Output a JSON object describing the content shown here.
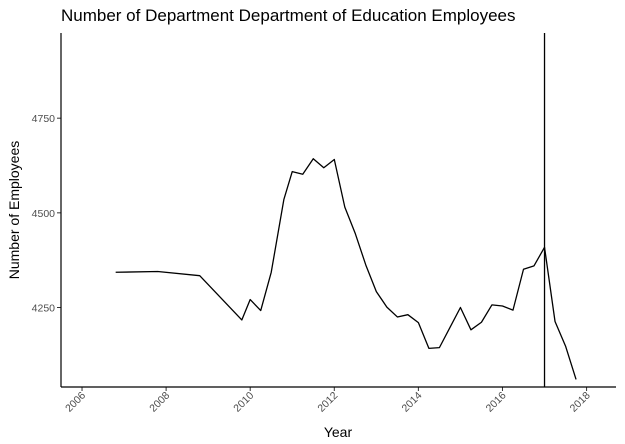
{
  "chart_data": {
    "type": "line",
    "title": "Number of Department Department of Education Employees",
    "xlabel": "Year",
    "ylabel": "Number of Employees",
    "x_ticks": [
      2006,
      2008,
      2010,
      2012,
      2014,
      2016,
      2018
    ],
    "y_ticks": [
      4250,
      4500,
      4750
    ],
    "xlim": [
      2005.5,
      2018.7
    ],
    "ylim": [
      4040,
      4975
    ],
    "grid": false,
    "legend": "none",
    "vertical_line_x": 2017.0,
    "series": [
      {
        "x": [
          2006.8,
          2007.8,
          2008.8,
          2009.8,
          2010.0,
          2010.25,
          2010.5,
          2010.8,
          2011.0,
          2011.25,
          2011.5,
          2011.75,
          2012.0,
          2012.25,
          2012.5,
          2012.75,
          2013.0,
          2013.25,
          2013.5,
          2013.75,
          2014.0,
          2014.25,
          2014.5,
          2014.75,
          2015.0,
          2015.25,
          2015.5,
          2015.75,
          2016.0,
          2016.25,
          2016.5,
          2016.75,
          2017.0,
          2017.25,
          2017.5,
          2017.75
        ],
        "y": [
          4343,
          4345,
          4334,
          4217,
          4271,
          4242,
          4343,
          4535,
          4609,
          4602,
          4643,
          4619,
          4641,
          4515,
          4445,
          4362,
          4292,
          4251,
          4225,
          4231,
          4210,
          4142,
          4144,
          4197,
          4250,
          4191,
          4211,
          4257,
          4254,
          4243,
          4351,
          4360,
          4409,
          4213,
          4148,
          4060
        ]
      }
    ]
  }
}
